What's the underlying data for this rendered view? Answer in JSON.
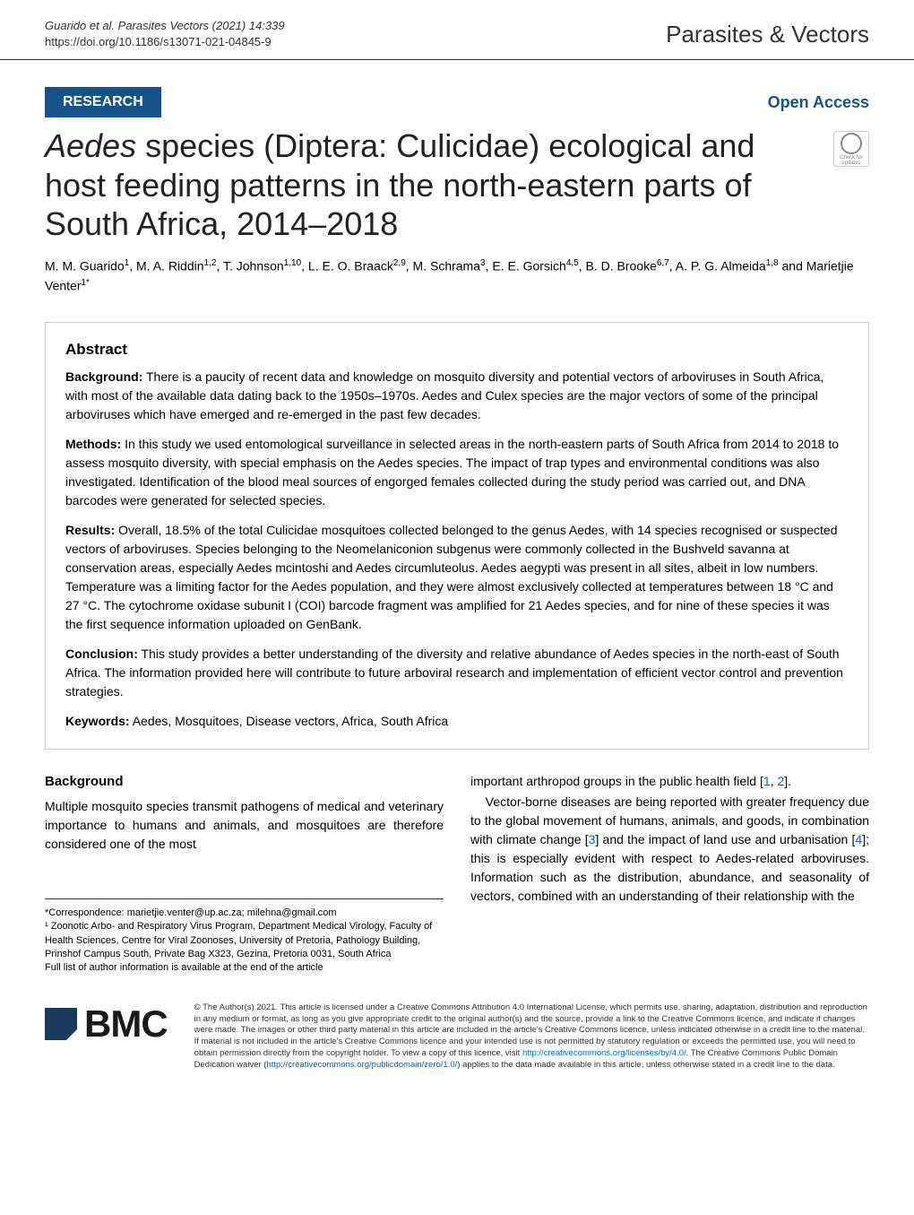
{
  "header": {
    "citation_line1": "Guarido et al. Parasites Vectors     (2021) 14:339",
    "citation_line2": "https://doi.org/10.1186/s13071-021-04845-9",
    "journal": "Parasites & Vectors"
  },
  "research_bar": {
    "label": "RESEARCH",
    "open_access": "Open Access"
  },
  "check_updates": "Check for updates",
  "title": "Aedes species (Diptera: Culicidae) ecological and host feeding patterns in the north-eastern parts of South Africa, 2014–2018",
  "authors_html": "M. M. Guarido<sup>1</sup>, M. A. Riddin<sup>1,2</sup>, T. Johnson<sup>1,10</sup>, L. E. O. Braack<sup>2,9</sup>, M. Schrama<sup>3</sup>, E. E. Gorsich<sup>4,5</sup>, B. D. Brooke<sup>6,7</sup>, A. P. G. Almeida<sup>1,8</sup> and Marietjie Venter<sup>1*</sup>",
  "abstract": {
    "heading": "Abstract",
    "background": {
      "label": "Background:",
      "text": " There is a paucity of recent data and knowledge on mosquito diversity and potential vectors of arboviruses in South Africa, with most of the available data dating back to the 1950s–1970s. Aedes and Culex species are the major vectors of some of the principal arboviruses which have emerged and re-emerged in the past few decades."
    },
    "methods": {
      "label": "Methods:",
      "text": " In this study we used entomological surveillance in selected areas in the north-eastern parts of South Africa from 2014 to 2018 to assess mosquito diversity, with special emphasis on the Aedes species. The impact of trap types and environmental conditions was also investigated. Identification of the blood meal sources of engorged females collected during the study period was carried out, and DNA barcodes were generated for selected species."
    },
    "results": {
      "label": "Results:",
      "text": " Overall, 18.5% of the total Culicidae mosquitoes collected belonged to the genus Aedes, with 14 species recognised or suspected vectors of arboviruses. Species belonging to the Neomelaniconion subgenus were commonly collected in the Bushveld savanna at conservation areas, especially Aedes mcintoshi and Aedes circumluteolus. Aedes aegypti was present in all sites, albeit in low numbers. Temperature was a limiting factor for the Aedes population, and they were almost exclusively collected at temperatures between 18 °C and 27 °C. The cytochrome oxidase subunit I (COI) barcode fragment was amplified for 21 Aedes species, and for nine of these species it was the first sequence information uploaded on GenBank."
    },
    "conclusion": {
      "label": "Conclusion:",
      "text": " This study provides a better understanding of the diversity and relative abundance of Aedes species in the north-east of South Africa. The information provided here will contribute to future arboviral research and implementation of efficient vector control and prevention strategies."
    },
    "keywords": {
      "label": "Keywords:",
      "text": " Aedes, Mosquitoes, Disease vectors, Africa, South Africa"
    }
  },
  "body": {
    "heading": "Background",
    "col1_p1": "Multiple mosquito species transmit pathogens of medical and veterinary importance to humans and animals, and mosquitoes are therefore considered one of the most",
    "correspondence": "*Correspondence: marietjie.venter@up.ac.za; milehna@gmail.com",
    "affiliation": "¹ Zoonotic Arbo- and Respiratory Virus Program, Department Medical Virology, Faculty of Health Sciences, Centre for Viral Zoonoses, University of Pretoria, Pathology Building, Prinshof Campus South, Private Bag X323, Gezina, Pretoria 0031, South Africa",
    "full_list": "Full list of author information is available at the end of the article",
    "col2_p1_pre": "important arthropod groups in the public health field [",
    "col2_p1_ref1": "1",
    "col2_p1_mid": ", ",
    "col2_p1_ref2": "2",
    "col2_p1_post": "].",
    "col2_p2_a": "Vector-borne diseases are being reported with greater frequency due to the global movement of humans, animals, and goods, in combination with climate change [",
    "col2_p2_ref3": "3",
    "col2_p2_b": "] and the impact of land use and urbanisation [",
    "col2_p2_ref4": "4",
    "col2_p2_c": "]; this is especially evident with respect to Aedes-related arboviruses. Information such as the distribution, abundance, and seasonality of vectors, combined with an understanding of their relationship with the"
  },
  "footer": {
    "bmc": "BMC",
    "license_a": "© The Author(s) 2021. This article is licensed under a Creative Commons Attribution 4.0 International License, which permits use, sharing, adaptation, distribution and reproduction in any medium or format, as long as you give appropriate credit to the original author(s) and the source, provide a link to the Creative Commons licence, and indicate if changes were made. The images or other third party material in this article are included in the article's Creative Commons licence, unless indicated otherwise in a credit line to the material. If material is not included in the article's Creative Commons licence and your intended use is not permitted by statutory regulation or exceeds the permitted use, you will need to obtain permission directly from the copyright holder. To view a copy of this licence, visit ",
    "license_link1": "http://creativecommons.org/licenses/by/4.0/",
    "license_b": ". The Creative Commons Public Domain Dedication waiver (",
    "license_link2": "http://creativecommons.org/publicdomain/zero/1.0/",
    "license_c": ") applies to the data made available in this article, unless otherwise stated in a credit line to the data."
  },
  "colors": {
    "brand_blue": "#16538a",
    "link_blue": "#0066cc",
    "bmc_navy": "#1a3a5c",
    "text": "#000000",
    "border": "#cccccc"
  }
}
